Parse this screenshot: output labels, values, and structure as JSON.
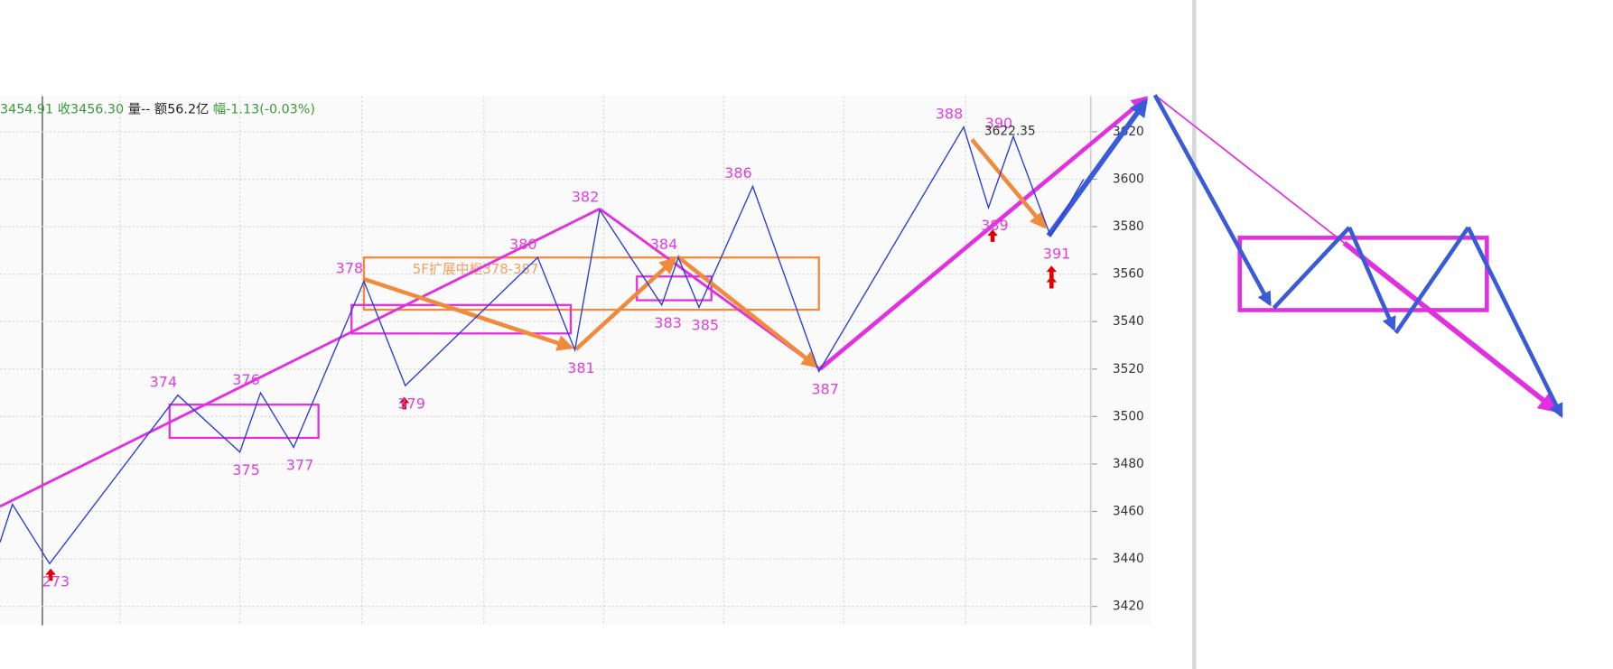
{
  "chart_data": {
    "type": "line",
    "header": [
      {
        "text": "3454.91",
        "color": "#3a9a3a"
      },
      {
        "text": "收3456.30",
        "color": "#3a9a3a"
      },
      {
        "text": "量--",
        "color": "#222222"
      },
      {
        "text": "额56.2亿",
        "color": "#222222"
      },
      {
        "text": "幅-1.13(-0.03%)",
        "color": "#3a9a3a"
      }
    ],
    "ylim": [
      3412,
      3635
    ],
    "yticks": [
      3420,
      3440,
      3460,
      3480,
      3500,
      3520,
      3540,
      3560,
      3580,
      3600,
      3620
    ],
    "xlim": [
      0,
      264
    ],
    "xgrid": [
      29,
      58,
      87.5,
      117,
      146,
      175,
      204,
      233.5
    ],
    "grid": true,
    "series": [
      {
        "name": "zigzag",
        "color": "#2b3fd6",
        "x": [
          0,
          3,
          12,
          43,
          58,
          63,
          71,
          88,
          98,
          130,
          139,
          145,
          160,
          164,
          169,
          182,
          198,
          233,
          239,
          245,
          254,
          262
        ],
        "values": [
          3447,
          3463,
          3438,
          3509,
          3485,
          3510,
          3487,
          3557,
          3513,
          3567,
          3528,
          3587,
          3547,
          3567,
          3546,
          3597,
          3519,
          3622,
          3588,
          3618,
          3576,
          3600
        ],
        "labels": [
          null,
          null,
          "273",
          "374",
          "375",
          "376",
          "377",
          "378",
          "379",
          "380",
          "381",
          "382",
          "383",
          "384",
          "385",
          "386",
          "387",
          "388",
          "389",
          "390",
          "391",
          null
        ]
      }
    ],
    "zones": [
      {
        "x0": 88,
        "x1": 198,
        "y0": 3545,
        "y1": 3567,
        "color": "#f08a3c",
        "label": "5F扩展中枢378-387"
      },
      {
        "x0": 41,
        "x1": 77,
        "y0": 3491,
        "y1": 3505,
        "color": "#e030e0"
      },
      {
        "x0": 85,
        "x1": 138,
        "y0": 3535,
        "y1": 3547,
        "color": "#e030e0"
      },
      {
        "x0": 154,
        "x1": 172,
        "y0": 3549,
        "y1": 3559,
        "color": "#e030e0"
      }
    ],
    "high_label": 3622.35
  }
}
